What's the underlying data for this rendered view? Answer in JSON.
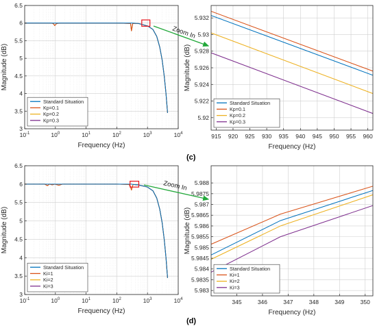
{
  "panel_labels": [
    "(c)",
    "(d)"
  ],
  "zoom_label": "Zoom In",
  "colors": {
    "c0": "#0072BD",
    "c1": "#D95319",
    "c2": "#EDB120",
    "c3": "#7E2F8E",
    "box": "#E8141C",
    "arrow": "#22A83A"
  },
  "chart_data": [
    {
      "id": "c-overview",
      "type": "line",
      "xscale": "log",
      "xlabel": "Frequency (Hz)",
      "ylabel": "Magnitude (dB)",
      "xlim": [
        0.1,
        10000
      ],
      "ylim": [
        3,
        6.5
      ],
      "xticks": [
        0.1,
        1,
        10,
        100,
        1000,
        10000
      ],
      "xtick_labels": [
        [
          "10",
          "-1"
        ],
        [
          "10",
          "0"
        ],
        [
          "10",
          "1"
        ],
        [
          "10",
          "2"
        ],
        [
          "10",
          "3"
        ],
        [
          "10",
          "4"
        ]
      ],
      "yticks": [
        3,
        3.5,
        4,
        4.5,
        5,
        5.5,
        6,
        6.5
      ],
      "ytick_labels": [
        "3",
        "3.5",
        "4",
        "4.5",
        "5",
        "5.5",
        "6",
        "6.5"
      ],
      "grid": true,
      "legend_position": "bottom-left",
      "zoom_box": {
        "x": [
          650,
          1200
        ],
        "y": [
          5.91,
          6.09
        ]
      },
      "series": [
        {
          "name": "Standard Situation",
          "color": "#0072BD",
          "points": [
            [
              0.1,
              6.0
            ],
            [
              0.7,
              6.0
            ],
            [
              0.85,
              6.0
            ],
            [
              0.95,
              6.0
            ],
            [
              1.1,
              6.0
            ],
            [
              1.5,
              6.0
            ],
            [
              10,
              6.0
            ],
            [
              100,
              6.0
            ],
            [
              280,
              6.0
            ],
            [
              300,
              6.0
            ],
            [
              330,
              6.0
            ],
            [
              500,
              5.99
            ],
            [
              1000,
              5.92
            ],
            [
              1500,
              5.82
            ],
            [
              2000,
              5.62
            ],
            [
              2500,
              5.32
            ],
            [
              3000,
              4.95
            ],
            [
              3500,
              4.5
            ],
            [
              4000,
              4.0
            ],
            [
              4500,
              3.45
            ]
          ]
        },
        {
          "name": "Kp=0.1",
          "color": "#D95319",
          "points": [
            [
              0.1,
              6.0
            ],
            [
              0.7,
              6.0
            ],
            [
              0.85,
              5.99
            ],
            [
              0.95,
              5.93
            ],
            [
              1.1,
              5.99
            ],
            [
              1.5,
              6.0
            ],
            [
              10,
              6.0
            ],
            [
              100,
              6.0
            ],
            [
              280,
              5.99
            ],
            [
              300,
              5.78
            ],
            [
              330,
              5.99
            ],
            [
              500,
              5.99
            ],
            [
              1000,
              5.92
            ],
            [
              1500,
              5.82
            ],
            [
              2000,
              5.62
            ],
            [
              2500,
              5.32
            ],
            [
              3000,
              4.95
            ],
            [
              3500,
              4.5
            ],
            [
              4000,
              4.0
            ],
            [
              4500,
              3.45
            ]
          ]
        },
        {
          "name": "Kp=0.2",
          "color": "#EDB120",
          "points": [
            [
              0.1,
              6.0
            ],
            [
              0.7,
              6.0
            ],
            [
              0.85,
              5.99
            ],
            [
              0.95,
              5.93
            ],
            [
              1.1,
              5.99
            ],
            [
              1.5,
              6.0
            ],
            [
              10,
              6.0
            ],
            [
              100,
              6.0
            ],
            [
              280,
              5.99
            ],
            [
              300,
              5.78
            ],
            [
              330,
              5.99
            ],
            [
              500,
              5.99
            ],
            [
              1000,
              5.92
            ],
            [
              1500,
              5.82
            ],
            [
              2000,
              5.62
            ],
            [
              2500,
              5.32
            ],
            [
              3000,
              4.95
            ],
            [
              3500,
              4.5
            ],
            [
              4000,
              4.0
            ],
            [
              4500,
              3.45
            ]
          ]
        },
        {
          "name": "Kp=0.3",
          "color": "#7E2F8E",
          "points": [
            [
              0.1,
              6.0
            ],
            [
              0.7,
              6.0
            ],
            [
              0.85,
              5.99
            ],
            [
              0.95,
              5.93
            ],
            [
              1.1,
              5.99
            ],
            [
              1.5,
              6.0
            ],
            [
              10,
              6.0
            ],
            [
              100,
              6.0
            ],
            [
              280,
              5.99
            ],
            [
              300,
              5.78
            ],
            [
              330,
              5.99
            ],
            [
              500,
              5.99
            ],
            [
              1000,
              5.92
            ],
            [
              1500,
              5.82
            ],
            [
              2000,
              5.62
            ],
            [
              2500,
              5.32
            ],
            [
              3000,
              4.95
            ],
            [
              3500,
              4.5
            ],
            [
              4000,
              4.0
            ],
            [
              4500,
              3.45
            ]
          ]
        }
      ]
    },
    {
      "id": "c-zoom",
      "type": "line",
      "xscale": "linear",
      "xlabel": "Frequency (Hz)",
      "ylabel": "Magnitude (dB)",
      "xlim": [
        913.5,
        961.5
      ],
      "ylim": [
        5.9185,
        5.9335
      ],
      "xticks": [
        915,
        920,
        925,
        930,
        935,
        940,
        945,
        950,
        955,
        960
      ],
      "xtick_labels": [
        "915",
        "920",
        "925",
        "930",
        "935",
        "940",
        "945",
        "950",
        "955",
        "960"
      ],
      "yticks": [
        5.92,
        5.922,
        5.924,
        5.926,
        5.928,
        5.93,
        5.932
      ],
      "ytick_labels": [
        "5.92",
        "5.922",
        "5.924",
        "5.926",
        "5.928",
        "5.93",
        "5.932"
      ],
      "grid": true,
      "legend_position": "bottom-left",
      "series": [
        {
          "name": "Standard Situation",
          "color": "#0072BD",
          "points": [
            [
              913.5,
              5.9323
            ],
            [
              961.5,
              5.9251
            ]
          ]
        },
        {
          "name": "Kp=0.1",
          "color": "#D95319",
          "points": [
            [
              913.5,
              5.9328
            ],
            [
              961.5,
              5.9256
            ]
          ]
        },
        {
          "name": "Kp=0.2",
          "color": "#EDB120",
          "points": [
            [
              913.5,
              5.9302
            ],
            [
              961.5,
              5.9229
            ]
          ]
        },
        {
          "name": "Kp=0.3",
          "color": "#7E2F8E",
          "points": [
            [
              913.5,
              5.9278
            ],
            [
              961.5,
              5.9205
            ]
          ]
        }
      ]
    },
    {
      "id": "d-overview",
      "type": "line",
      "xscale": "log",
      "xlabel": "Frequency (Hz)",
      "ylabel": "Magnitude (dB)",
      "xlim": [
        0.1,
        10000
      ],
      "ylim": [
        3,
        6.5
      ],
      "xticks": [
        0.1,
        1,
        10,
        100,
        1000,
        10000
      ],
      "xtick_labels": [
        [
          "10",
          "-1"
        ],
        [
          "10",
          "0"
        ],
        [
          "10",
          "1"
        ],
        [
          "10",
          "2"
        ],
        [
          "10",
          "3"
        ],
        [
          "10",
          "4"
        ]
      ],
      "yticks": [
        3,
        3.5,
        4,
        4.5,
        5,
        5.5,
        6,
        6.5
      ],
      "ytick_labels": [
        "3",
        "3.5",
        "4",
        "4.5",
        "5",
        "5.5",
        "6",
        "6.5"
      ],
      "grid": true,
      "legend_position": "bottom-left",
      "zoom_box": {
        "x": [
          270,
          520
        ],
        "y": [
          5.92,
          6.08
        ]
      },
      "series": [
        {
          "name": "Standard Situation",
          "color": "#0072BD",
          "points": [
            [
              0.1,
              6.0
            ],
            [
              0.5,
              6.0
            ],
            [
              1,
              6.0
            ],
            [
              10,
              6.0
            ],
            [
              100,
              6.0
            ],
            [
              250,
              6.0
            ],
            [
              280,
              6.0
            ],
            [
              300,
              6.0
            ],
            [
              340,
              5.99
            ],
            [
              500,
              5.98
            ],
            [
              1000,
              5.92
            ],
            [
              1500,
              5.82
            ],
            [
              2000,
              5.62
            ],
            [
              2500,
              5.32
            ],
            [
              3000,
              4.95
            ],
            [
              3500,
              4.5
            ],
            [
              4000,
              4.0
            ],
            [
              4500,
              3.45
            ]
          ]
        },
        {
          "name": "Ki=1",
          "color": "#D95319",
          "points": [
            [
              0.1,
              6.0
            ],
            [
              0.45,
              6.0
            ],
            [
              0.55,
              5.96
            ],
            [
              0.65,
              6.0
            ],
            [
              0.8,
              5.98
            ],
            [
              0.95,
              6.0
            ],
            [
              1.3,
              5.97
            ],
            [
              1.7,
              6.0
            ],
            [
              10,
              6.0
            ],
            [
              100,
              6.0
            ],
            [
              250,
              5.99
            ],
            [
              280,
              5.93
            ],
            [
              300,
              5.84
            ],
            [
              320,
              5.93
            ],
            [
              340,
              5.99
            ],
            [
              500,
              5.98
            ],
            [
              1000,
              5.92
            ],
            [
              1500,
              5.82
            ],
            [
              2000,
              5.62
            ],
            [
              2500,
              5.32
            ],
            [
              3000,
              4.95
            ],
            [
              3500,
              4.5
            ],
            [
              4000,
              4.0
            ],
            [
              4500,
              3.45
            ]
          ]
        },
        {
          "name": "Ki=2",
          "color": "#EDB120",
          "points": [
            [
              0.1,
              6.0
            ],
            [
              0.45,
              6.0
            ],
            [
              0.55,
              5.96
            ],
            [
              0.65,
              6.0
            ],
            [
              0.8,
              5.98
            ],
            [
              0.95,
              6.0
            ],
            [
              1.3,
              5.97
            ],
            [
              1.7,
              6.0
            ],
            [
              10,
              6.0
            ],
            [
              100,
              6.0
            ],
            [
              250,
              5.99
            ],
            [
              280,
              5.93
            ],
            [
              300,
              5.84
            ],
            [
              320,
              5.93
            ],
            [
              340,
              5.99
            ],
            [
              500,
              5.98
            ],
            [
              1000,
              5.92
            ],
            [
              1500,
              5.82
            ],
            [
              2000,
              5.62
            ],
            [
              2500,
              5.32
            ],
            [
              3000,
              4.95
            ],
            [
              3500,
              4.5
            ],
            [
              4000,
              4.0
            ],
            [
              4500,
              3.45
            ]
          ]
        },
        {
          "name": "Ki=3",
          "color": "#7E2F8E",
          "points": [
            [
              0.1,
              6.0
            ],
            [
              0.45,
              6.0
            ],
            [
              0.55,
              5.96
            ],
            [
              0.65,
              6.0
            ],
            [
              0.8,
              5.98
            ],
            [
              0.95,
              6.0
            ],
            [
              1.3,
              5.97
            ],
            [
              1.7,
              6.0
            ],
            [
              10,
              6.0
            ],
            [
              100,
              6.0
            ],
            [
              250,
              5.99
            ],
            [
              280,
              5.93
            ],
            [
              300,
              5.84
            ],
            [
              320,
              5.93
            ],
            [
              340,
              5.99
            ],
            [
              500,
              5.98
            ],
            [
              1000,
              5.92
            ],
            [
              1500,
              5.82
            ],
            [
              2000,
              5.62
            ],
            [
              2500,
              5.32
            ],
            [
              3000,
              4.95
            ],
            [
              3500,
              4.5
            ],
            [
              4000,
              4.0
            ],
            [
              4500,
              3.45
            ]
          ]
        }
      ]
    },
    {
      "id": "d-zoom",
      "type": "line",
      "xscale": "linear",
      "xlabel": "Frequency (Hz)",
      "ylabel": "Magnitude (dB)",
      "xlim": [
        344,
        350.3
      ],
      "ylim": [
        5.98275,
        5.9888
      ],
      "xticks": [
        345,
        346,
        347,
        348,
        349,
        350
      ],
      "xtick_labels": [
        "345",
        "346",
        "347",
        "348",
        "349",
        "350"
      ],
      "yticks": [
        5.983,
        5.9835,
        5.984,
        5.9845,
        5.985,
        5.9855,
        5.986,
        5.9865,
        5.987,
        5.9875,
        5.988
      ],
      "ytick_labels": [
        "5.983",
        "5.9835",
        "5.984",
        "5.9845",
        "5.985",
        "5.9855",
        "5.986",
        "5.9865",
        "5.987",
        "5.9875",
        "5.988"
      ],
      "grid": true,
      "legend_position": "bottom-left",
      "series": [
        {
          "name": "Standard Situation",
          "color": "#0072BD",
          "points": [
            [
              344,
              5.98465
            ],
            [
              346.7,
              5.98625
            ],
            [
              350.3,
              5.98765
            ]
          ]
        },
        {
          "name": "Ki=1",
          "color": "#D95319",
          "points": [
            [
              344,
              5.98515
            ],
            [
              346.7,
              5.98655
            ],
            [
              350.3,
              5.98785
            ]
          ]
        },
        {
          "name": "Ki=2",
          "color": "#EDB120",
          "points": [
            [
              344,
              5.98445
            ],
            [
              346.7,
              5.986
            ],
            [
              350.3,
              5.98745
            ]
          ]
        },
        {
          "name": "Ki=3",
          "color": "#7E2F8E",
          "points": [
            [
              344,
              5.98385
            ],
            [
              346.7,
              5.9855
            ],
            [
              350.3,
              5.98695
            ]
          ]
        }
      ]
    }
  ]
}
